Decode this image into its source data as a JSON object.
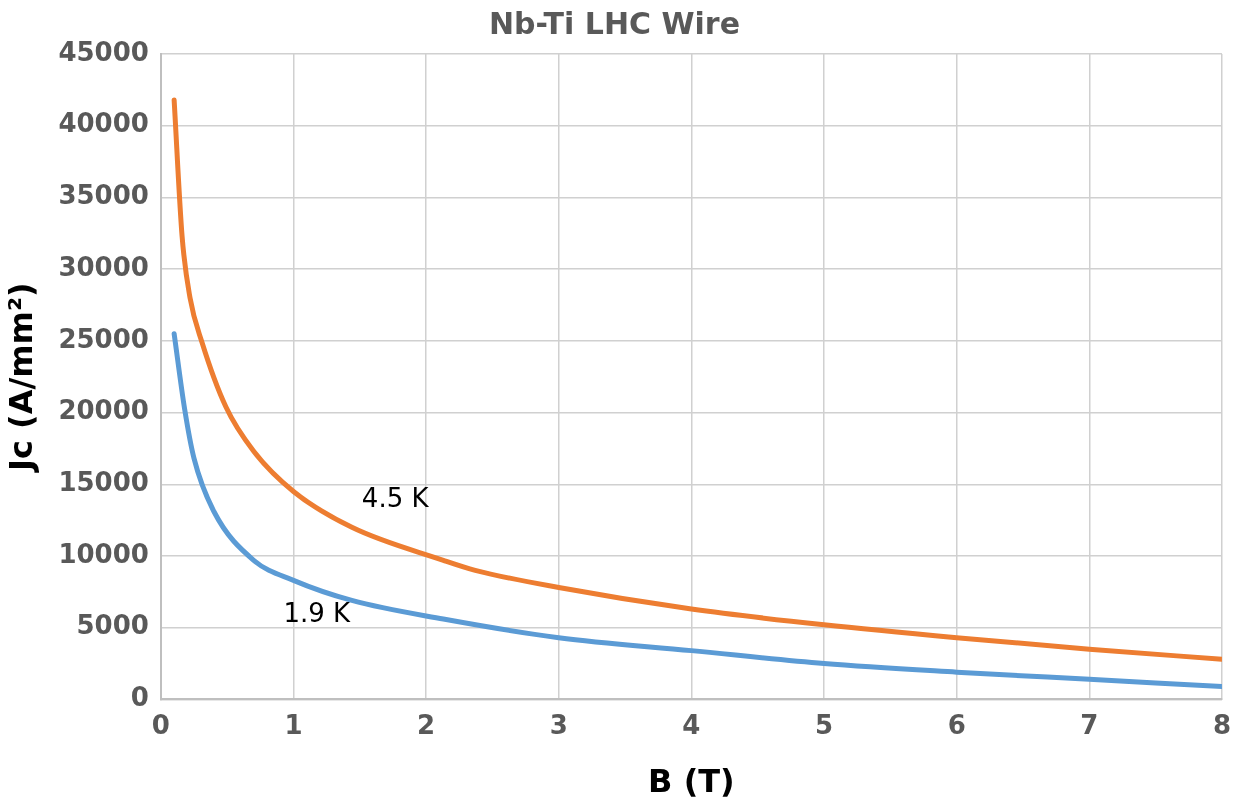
{
  "chart_data": {
    "type": "line",
    "title": "Nb-Ti LHC Wire",
    "xlabel": "B (T)",
    "ylabel": "Jc (A/mm²)",
    "xlim": [
      0,
      8
    ],
    "xticks": [
      0,
      1,
      2,
      3,
      4,
      5,
      6,
      7,
      8
    ],
    "ylim": [
      0,
      45000
    ],
    "yticks": [
      0,
      5000,
      10000,
      15000,
      20000,
      25000,
      30000,
      35000,
      40000,
      45000
    ],
    "grid": true,
    "legend": false,
    "marker": "none",
    "line_style": "solid",
    "series": [
      {
        "name": "4.5 K",
        "color": "#ed7d31",
        "x": [
          0.1,
          0.16,
          0.22,
          0.31,
          0.49,
          0.7,
          1.0,
          1.44,
          2.13,
          2.37,
          3,
          4,
          5,
          6,
          7,
          8
        ],
        "values": [
          41800,
          32300,
          28000,
          24900,
          20400,
          17300,
          14500,
          12000,
          9700,
          9000,
          7800,
          6300,
          5200,
          4300,
          3500,
          2800
        ]
      },
      {
        "name": "1.9 K",
        "color": "#5b9bd5",
        "x": [
          0.1,
          0.18,
          0.25,
          0.4,
          0.7,
          1.0,
          1.44,
          2.13,
          3,
          4,
          5,
          6,
          7,
          8
        ],
        "values": [
          25500,
          20200,
          16800,
          13100,
          9700,
          8300,
          6900,
          5600,
          4300,
          3400,
          2500,
          1900,
          1400,
          900
        ]
      }
    ]
  }
}
